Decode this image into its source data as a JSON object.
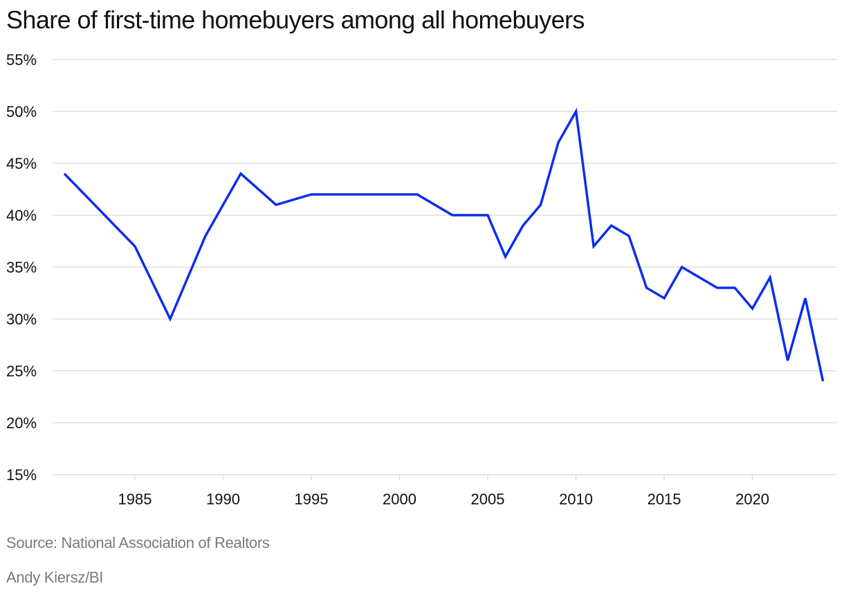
{
  "title": "Share of first-time homebuyers among all homebuyers",
  "source": "Source: National Association of Realtors",
  "credit": "Andy Kiersz/BI",
  "colors": {
    "line": "#0b2df0",
    "grid": "#dedede",
    "text": "#111111",
    "footnote": "#7a7a7a"
  },
  "chart_data": {
    "type": "line",
    "title": "Share of first-time homebuyers among all homebuyers",
    "xlabel": "",
    "ylabel": "",
    "x_ticks": [
      1985,
      1990,
      1995,
      2000,
      2005,
      2010,
      2015,
      2020
    ],
    "y_ticks": [
      15,
      20,
      25,
      30,
      35,
      40,
      45,
      50,
      55
    ],
    "y_tick_labels": [
      "15%",
      "20%",
      "25%",
      "30%",
      "35%",
      "40%",
      "45%",
      "50%",
      "55%"
    ],
    "xlim": [
      1980.1,
      2024.8
    ],
    "ylim": [
      15,
      55
    ],
    "grid": "horizontal",
    "legend": "none",
    "series": [
      {
        "x": [
          1981,
          1985,
          1987,
          1989,
          1991,
          1993,
          1995,
          1997,
          1999,
          2001,
          2003,
          2004,
          2005,
          2006,
          2007,
          2008,
          2009,
          2010,
          2011,
          2012,
          2013,
          2014,
          2015,
          2016,
          2017,
          2018,
          2019,
          2020,
          2021,
          2022,
          2023,
          2024
        ],
        "y": [
          44,
          37,
          30,
          38,
          44,
          41,
          42,
          42,
          42,
          42,
          40,
          40,
          40,
          36,
          39,
          41,
          47,
          50,
          37,
          39,
          38,
          33,
          32,
          35,
          34,
          33,
          33,
          31,
          34,
          26,
          32,
          24
        ]
      }
    ]
  }
}
